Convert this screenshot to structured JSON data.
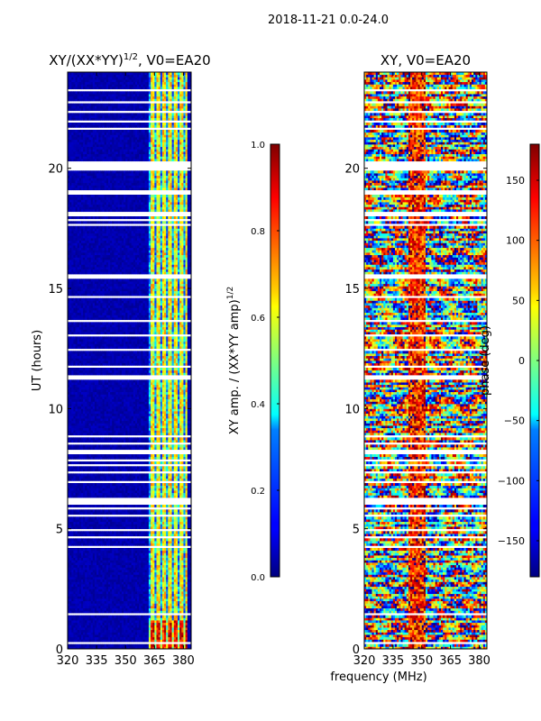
{
  "suptitle": "2018-11-21 0.0-24.0",
  "chart_data": [
    {
      "type": "heatmap",
      "title": "XY/(XX*YY)^1/2, V0=EA20",
      "title_base": "XY/(XX*YY)",
      "title_exp": "1/2",
      "title_tail": ", V0=EA20",
      "xlabel": "",
      "ylabel": "UT (hours)",
      "xlim": [
        320,
        384
      ],
      "ylim": [
        0,
        24
      ],
      "xticks": [
        320,
        335,
        350,
        365,
        380
      ],
      "yticks": [
        0,
        5,
        10,
        15,
        20
      ],
      "colorbar": {
        "label_base": "XY amp. / (XX*YY amp)",
        "label_exp": "1/2",
        "range": [
          0.0,
          1.0
        ],
        "ticks": [
          "0.0",
          "0.2",
          "0.4",
          "0.6",
          "0.8",
          "1.0"
        ],
        "tick_values": [
          0.0,
          0.2,
          0.4,
          0.6,
          0.8,
          1.0
        ],
        "colormap": "jet"
      },
      "description_of_values": "Mostly near 0 (dark blue) below ~362 MHz; elevated values (0.3-0.7) in bands between ~362 and ~381 MHz; highest near UT 0.5-1."
    },
    {
      "type": "heatmap",
      "title": "XY, V0=EA20",
      "xlabel": "frequency (MHz)",
      "ylabel": "",
      "xlim": [
        320,
        384
      ],
      "ylim": [
        0,
        24
      ],
      "xticks": [
        320,
        335,
        350,
        365,
        380
      ],
      "yticks": [
        0,
        5,
        10,
        15,
        20
      ],
      "colorbar": {
        "label": "phase (deg)",
        "range": [
          -180,
          180
        ],
        "ticks": [
          "150",
          "100",
          "50",
          "0",
          "−50",
          "−100",
          "−150"
        ],
        "tick_values": [
          150,
          100,
          50,
          0,
          -50,
          -100,
          -150
        ],
        "colormap": "jet"
      },
      "description_of_values": "Phase spans -180 to 180 deg with noisy full-range structure across the band."
    }
  ],
  "gaps_hours": [
    [
      0.25,
      0.35
    ],
    [
      0.6,
      0.65
    ],
    [
      1.4,
      1.5
    ],
    [
      3.0,
      3.05
    ],
    [
      4.15,
      4.35
    ],
    [
      4.6,
      4.65
    ],
    [
      4.95,
      5.0
    ],
    [
      5.55,
      5.6
    ],
    [
      5.8,
      5.9
    ],
    [
      6.0,
      6.3
    ],
    [
      6.5,
      6.55
    ],
    [
      6.95,
      7.0
    ],
    [
      7.3,
      7.4
    ],
    [
      7.6,
      7.65
    ],
    [
      7.85,
      7.9
    ],
    [
      8.15,
      8.3
    ],
    [
      8.55,
      8.6
    ],
    [
      8.8,
      8.9
    ],
    [
      11.0,
      11.05
    ],
    [
      11.25,
      11.4
    ],
    [
      11.75,
      11.8
    ],
    [
      12.45,
      12.5
    ],
    [
      13.05,
      13.1
    ],
    [
      13.65,
      13.7
    ],
    [
      14.0,
      14.05
    ],
    [
      14.6,
      14.7
    ],
    [
      15.3,
      15.35
    ],
    [
      15.45,
      15.6
    ],
    [
      16.4,
      16.45
    ],
    [
      17.0,
      17.05
    ],
    [
      17.2,
      17.25
    ],
    [
      17.4,
      17.45
    ],
    [
      17.65,
      17.7
    ],
    [
      17.85,
      17.9
    ],
    [
      18.05,
      18.2
    ],
    [
      18.95,
      19.15
    ],
    [
      19.9,
      20.35
    ],
    [
      20.5,
      20.55
    ],
    [
      20.8,
      20.85
    ],
    [
      21.2,
      21.25
    ],
    [
      21.65,
      21.7
    ],
    [
      21.9,
      22.0
    ],
    [
      22.3,
      22.4
    ],
    [
      22.75,
      22.8
    ],
    [
      23.25,
      23.35
    ],
    [
      23.6,
      23.65
    ]
  ]
}
